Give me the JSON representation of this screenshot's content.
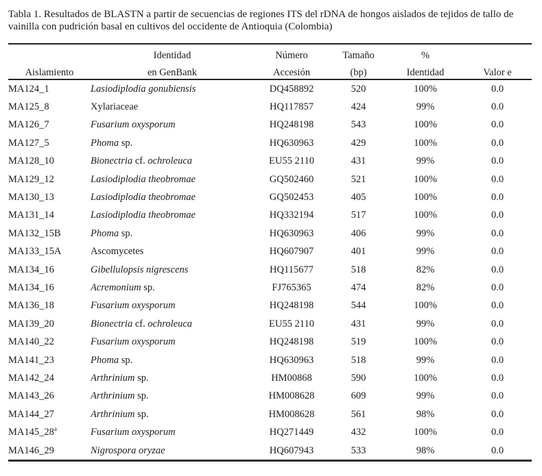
{
  "page": {
    "background_color": "#ffffff",
    "text_color": "#1c1c1c",
    "rule_color": "#232323"
  },
  "title": "Tabla 1. Resultados de BLASTN a partir de secuencias de regiones ITS del rDNA de hongos aislados de tejidos de tallo de vainilla con pudrición basal en cultivos del occidente de Antioquia (Colombia)",
  "table": {
    "headers": [
      {
        "line1": "",
        "line2": "Aislamiento"
      },
      {
        "line1": "Identidad",
        "line2": "en GenBank"
      },
      {
        "line1": "Número",
        "line2": "Accesión"
      },
      {
        "line1": "Tamaño",
        "line2": "(bp)"
      },
      {
        "line1": "%",
        "line2": "Identidad"
      },
      {
        "line1": "",
        "line2": "Valor e"
      }
    ],
    "rows": [
      {
        "aislamiento": "MA124_1",
        "sup": "",
        "identidad": [
          {
            "t": "Lasiodiplodia gonubiensis",
            "i": true
          }
        ],
        "accesion": "DQ458892",
        "tamano": "520",
        "pct": "100%",
        "valor_e": "0.0"
      },
      {
        "aislamiento": "MA125_8",
        "sup": "",
        "identidad": [
          {
            "t": "Xylariaceae",
            "i": false
          }
        ],
        "accesion": "HQ117857",
        "tamano": "424",
        "pct": "99%",
        "valor_e": "0.0"
      },
      {
        "aislamiento": "MA126_7",
        "sup": "",
        "identidad": [
          {
            "t": "Fusarium oxysporum",
            "i": true
          }
        ],
        "accesion": "HQ248198",
        "tamano": "543",
        "pct": "100%",
        "valor_e": "0.0"
      },
      {
        "aislamiento": "MA127_5",
        "sup": "",
        "identidad": [
          {
            "t": "Phoma",
            "i": true
          },
          {
            "t": " sp.",
            "i": false
          }
        ],
        "accesion": "HQ630963",
        "tamano": "429",
        "pct": "100%",
        "valor_e": "0.0"
      },
      {
        "aislamiento": "MA128_10",
        "sup": "",
        "identidad": [
          {
            "t": "Bionectria",
            "i": true
          },
          {
            "t": " cf. ",
            "i": false
          },
          {
            "t": "ochroleuca",
            "i": true
          }
        ],
        "accesion": "EU55 2110",
        "tamano": "431",
        "pct": "99%",
        "valor_e": "0.0"
      },
      {
        "aislamiento": "MA129_12",
        "sup": "",
        "identidad": [
          {
            "t": "Lasiodiplodia theobromae",
            "i": true
          }
        ],
        "accesion": "GQ502460",
        "tamano": "521",
        "pct": "100%",
        "valor_e": "0.0"
      },
      {
        "aislamiento": "MA130_13",
        "sup": "",
        "identidad": [
          {
            "t": "Lasiodiplodia theobromae",
            "i": true
          }
        ],
        "accesion": "GQ502453",
        "tamano": "405",
        "pct": "100%",
        "valor_e": "0.0"
      },
      {
        "aislamiento": "MA131_14",
        "sup": "",
        "identidad": [
          {
            "t": "Lasiodiplodia theobromae",
            "i": true
          }
        ],
        "accesion": "HQ332194",
        "tamano": "517",
        "pct": "100%",
        "valor_e": "0.0"
      },
      {
        "aislamiento": "MA132_15B",
        "sup": "",
        "identidad": [
          {
            "t": "Phoma",
            "i": true
          },
          {
            "t": " sp.",
            "i": false
          }
        ],
        "accesion": "HQ630963",
        "tamano": "406",
        "pct": "99%",
        "valor_e": "0.0"
      },
      {
        "aislamiento": "MA133_15A",
        "sup": "",
        "identidad": [
          {
            "t": "Ascomycetes",
            "i": false
          }
        ],
        "accesion": "HQ607907",
        "tamano": "401",
        "pct": "99%",
        "valor_e": "0.0"
      },
      {
        "aislamiento": "MA134_16",
        "sup": "",
        "identidad": [
          {
            "t": "Gibellulopsis nigrescens",
            "i": true
          }
        ],
        "accesion": "HQ115677",
        "tamano": "518",
        "pct": "82%",
        "valor_e": "0.0"
      },
      {
        "aislamiento": "MA134_16",
        "sup": "",
        "identidad": [
          {
            "t": "Acremonium",
            "i": true
          },
          {
            "t": " sp.",
            "i": false
          }
        ],
        "accesion": "FJ765365",
        "tamano": "474",
        "pct": "82%",
        "valor_e": "0.0"
      },
      {
        "aislamiento": "MA136_18",
        "sup": "",
        "identidad": [
          {
            "t": "Fusarium oxysporum",
            "i": true
          }
        ],
        "accesion": "HQ248198",
        "tamano": "544",
        "pct": "100%",
        "valor_e": "0.0"
      },
      {
        "aislamiento": "MA139_20",
        "sup": "",
        "identidad": [
          {
            "t": "Bionectria",
            "i": true
          },
          {
            "t": " cf. ",
            "i": false
          },
          {
            "t": "ochroleuca",
            "i": true
          }
        ],
        "accesion": "EU55 2110",
        "tamano": "431",
        "pct": "99%",
        "valor_e": "0.0"
      },
      {
        "aislamiento": "MA140_22",
        "sup": "",
        "identidad": [
          {
            "t": "Fusarium oxysporum",
            "i": true
          }
        ],
        "accesion": "HQ248198",
        "tamano": "519",
        "pct": "100%",
        "valor_e": "0.0"
      },
      {
        "aislamiento": "MA141_23",
        "sup": "",
        "identidad": [
          {
            "t": "Phoma",
            "i": true
          },
          {
            "t": " sp.",
            "i": false
          }
        ],
        "accesion": "HQ630963",
        "tamano": "518",
        "pct": "99%",
        "valor_e": "0.0"
      },
      {
        "aislamiento": "MA142_24",
        "sup": "",
        "identidad": [
          {
            "t": "Arthrinium",
            "i": true
          },
          {
            "t": " sp.",
            "i": false
          }
        ],
        "accesion": "HM00868",
        "tamano": "590",
        "pct": "100%",
        "valor_e": "0.0"
      },
      {
        "aislamiento": "MA143_26",
        "sup": "",
        "identidad": [
          {
            "t": "Arthrinium",
            "i": true
          },
          {
            "t": " sp.",
            "i": false
          }
        ],
        "accesion": "HM008628",
        "tamano": "609",
        "pct": "99%",
        "valor_e": "0.0"
      },
      {
        "aislamiento": "MA144_27",
        "sup": "",
        "identidad": [
          {
            "t": "Arthrinium",
            "i": true
          },
          {
            "t": " sp.",
            "i": false
          }
        ],
        "accesion": "HM008628",
        "tamano": "561",
        "pct": "98%",
        "valor_e": "0.0"
      },
      {
        "aislamiento": "MA145_28",
        "sup": "a",
        "identidad": [
          {
            "t": "Fusarium oxysporum",
            "i": true
          }
        ],
        "accesion": "HQ271449",
        "tamano": "432",
        "pct": "100%",
        "valor_e": "0.0"
      },
      {
        "aislamiento": "MA146_29",
        "sup": "",
        "identidad": [
          {
            "t": "Nigrospora oryzae",
            "i": true
          }
        ],
        "accesion": "HQ607943",
        "tamano": "533",
        "pct": "98%",
        "valor_e": "0.0"
      }
    ]
  }
}
